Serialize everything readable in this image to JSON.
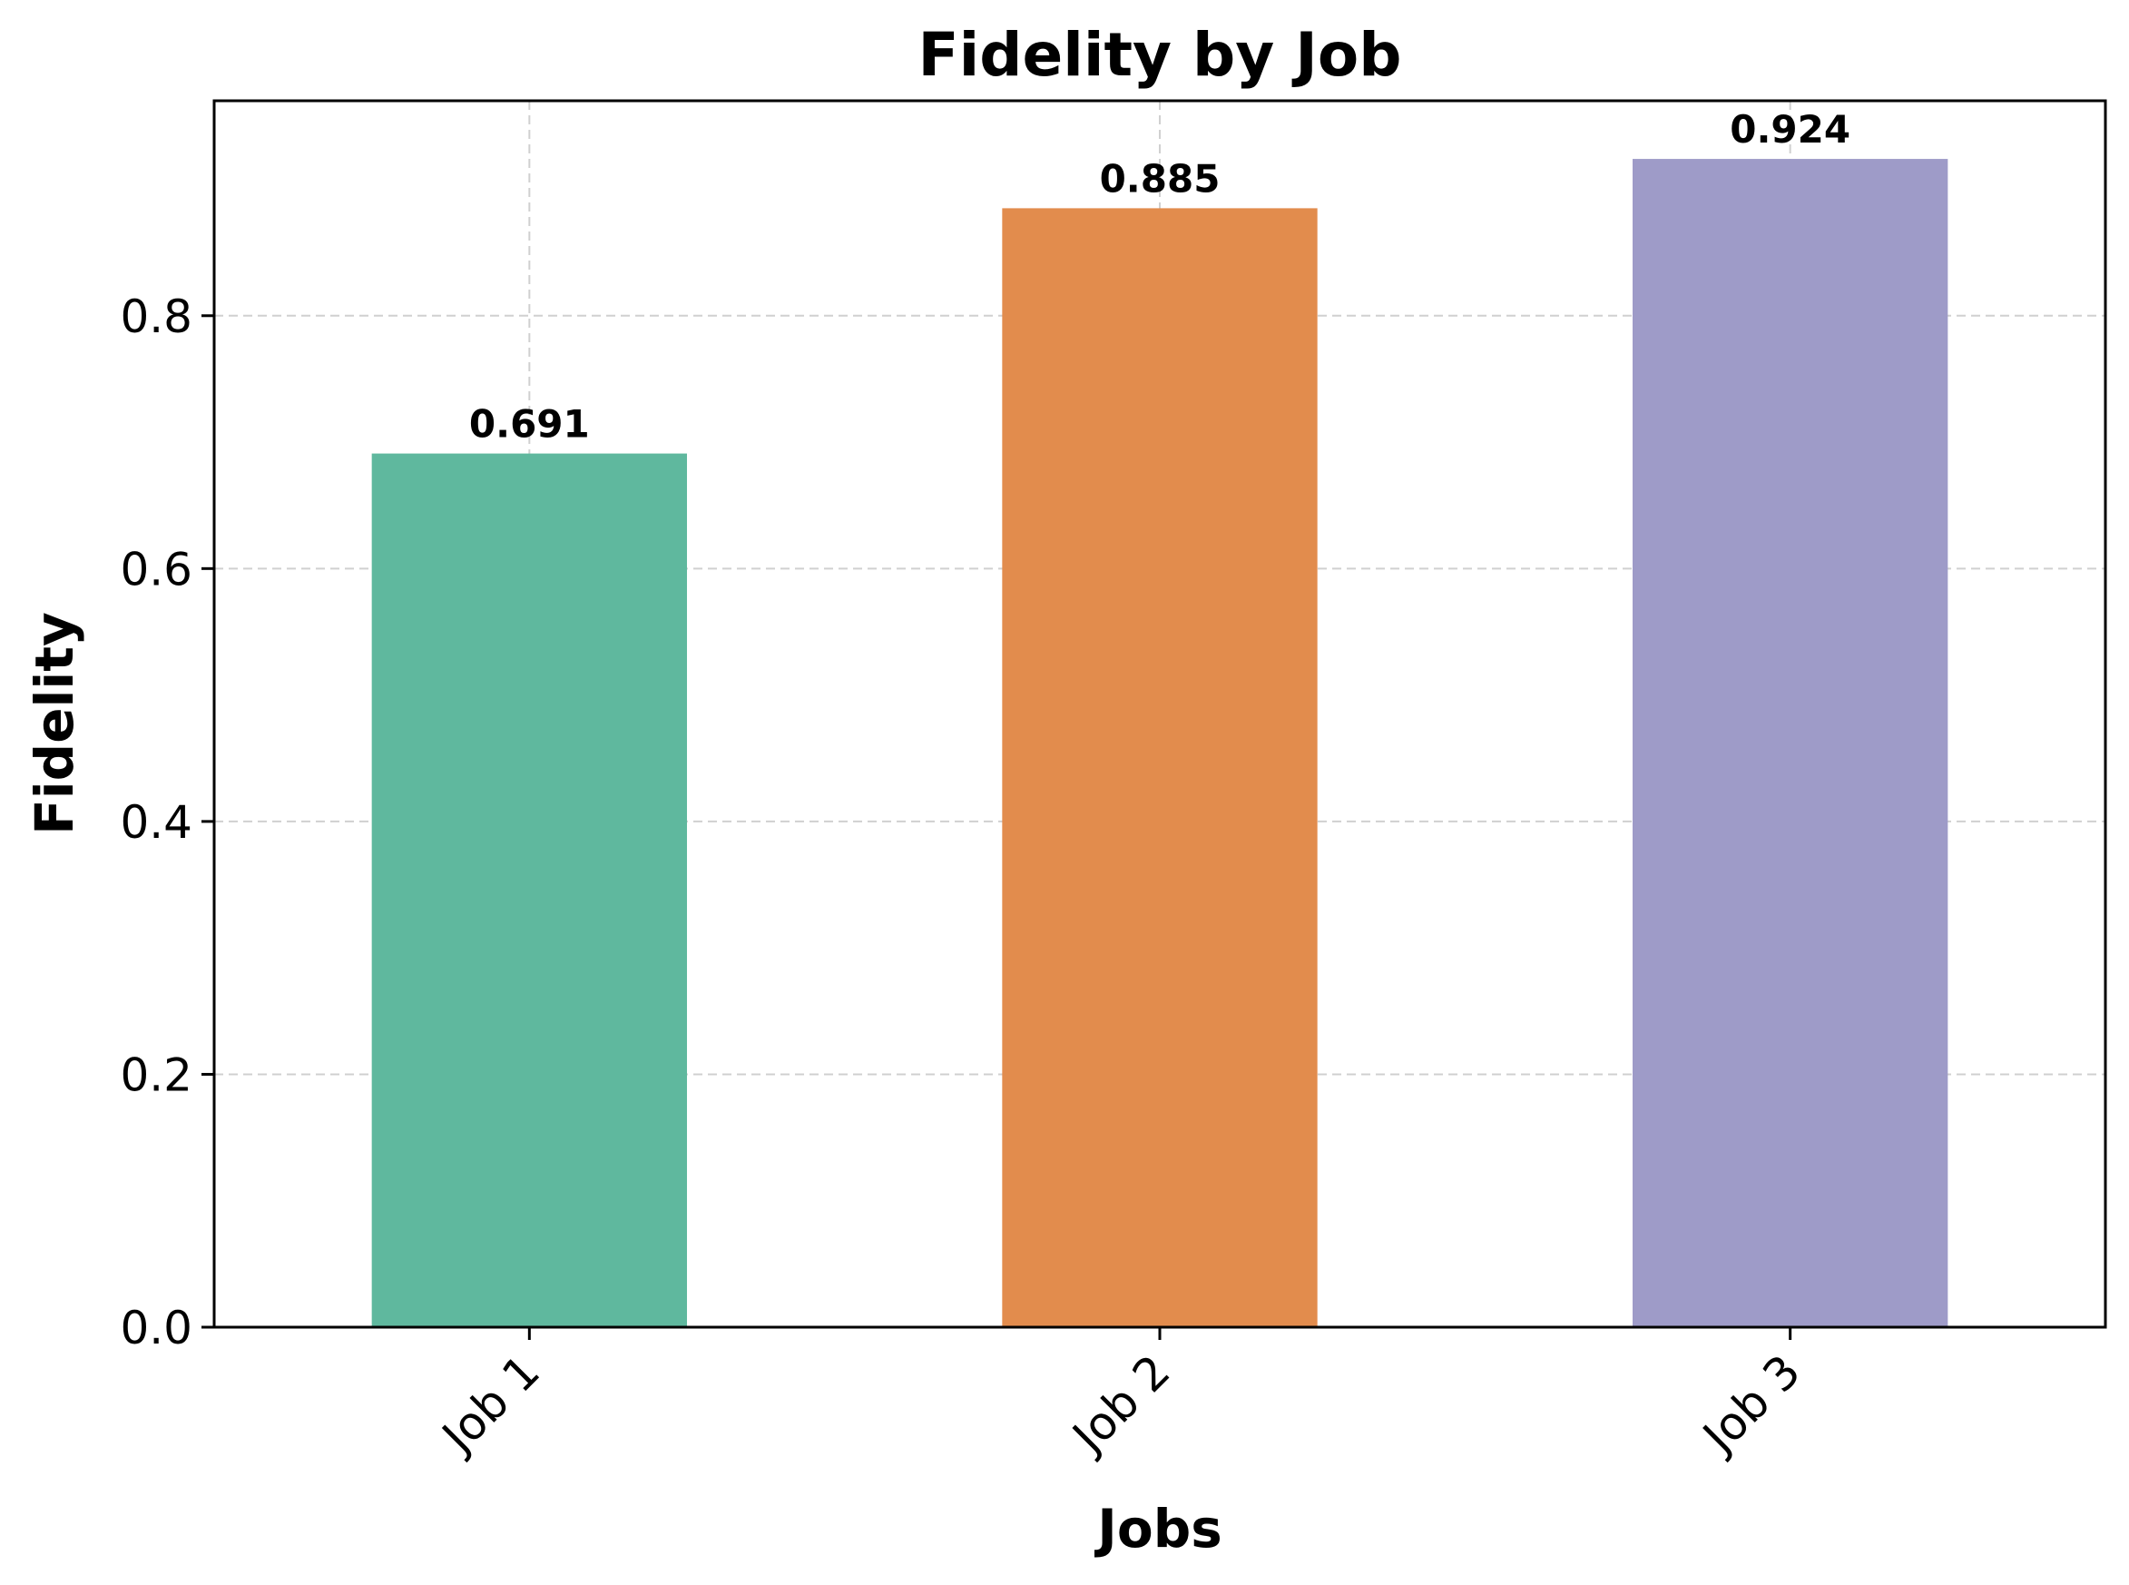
{
  "chart_data": {
    "type": "bar",
    "title": "Fidelity by Job",
    "xlabel": "Jobs",
    "ylabel": "Fidelity",
    "categories": [
      "Job 1",
      "Job 2",
      "Job 3"
    ],
    "values": [
      0.691,
      0.885,
      0.924
    ],
    "data_labels": [
      "0.691",
      "0.885",
      "0.924"
    ],
    "colors": [
      "#5fb89e",
      "#e28c4d",
      "#9e9bc8"
    ],
    "ylim": [
      0,
      0.97
    ],
    "yticks": [
      0.0,
      0.2,
      0.4,
      0.6,
      0.8
    ],
    "ytick_labels": [
      "0.0",
      "0.2",
      "0.4",
      "0.6",
      "0.8"
    ],
    "grid": true,
    "x_tick_rotation_deg": 45
  }
}
